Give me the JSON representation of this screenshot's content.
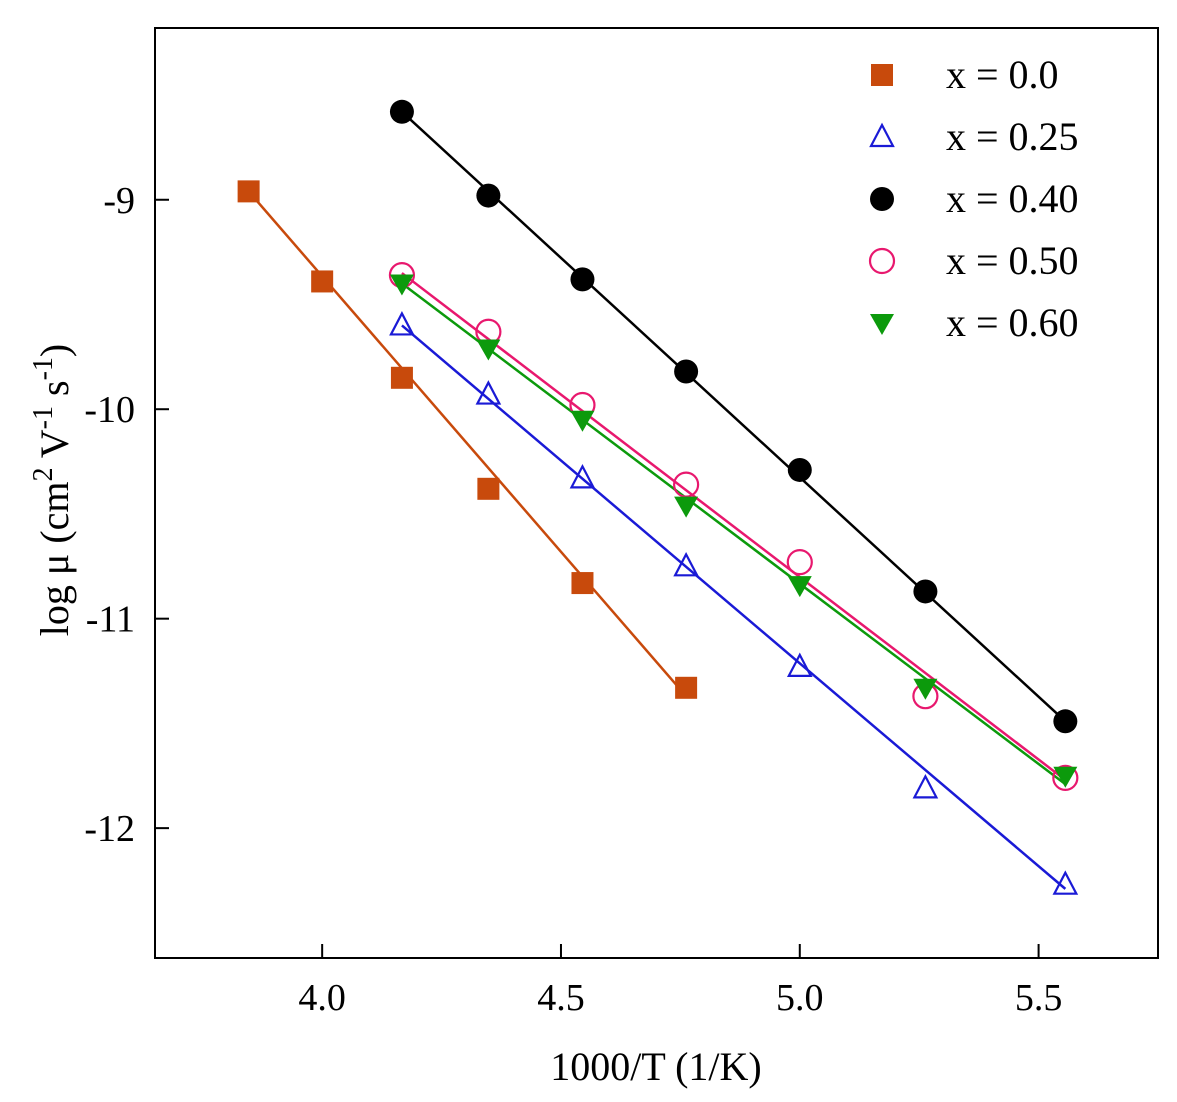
{
  "chart_data": {
    "type": "scatter",
    "title": "",
    "xlabel": "1000/T  (1/K)",
    "ylabel_parts": {
      "prefix": "log μ (cm",
      "sup1": "2",
      "mid1": " V",
      "sup2": "-1",
      "mid2": " s",
      "sup3": "-1",
      "suffix": ")"
    },
    "xlim": [
      3.65,
      5.75
    ],
    "ylim": [
      -12.62,
      -8.18
    ],
    "xticks": [
      4.0,
      4.5,
      5.0,
      5.5
    ],
    "xtick_labels": [
      "4.0",
      "4.5",
      "5.0",
      "5.5"
    ],
    "yticks": [
      -9,
      -10,
      -11,
      -12
    ],
    "ytick_labels": [
      "-9",
      "-10",
      "-11",
      "-12"
    ],
    "grid": false,
    "legend_position": "top-right",
    "series": [
      {
        "name": "x = 0.0",
        "marker": "square-filled",
        "color": "#c84a0c",
        "x": [
          3.846,
          4.0,
          4.167,
          4.348,
          4.545,
          4.762
        ],
        "y": [
          -8.96,
          -9.39,
          -9.85,
          -10.38,
          -10.83,
          -11.33
        ],
        "fit": [
          [
            3.846,
            -8.96
          ],
          [
            4.762,
            -11.37
          ]
        ]
      },
      {
        "name": "x = 0.25",
        "marker": "triangle-open",
        "color": "#1a1ad6",
        "x": [
          4.167,
          4.348,
          4.545,
          4.762,
          5.0,
          5.263,
          5.556
        ],
        "y": [
          -9.6,
          -9.93,
          -10.33,
          -10.75,
          -11.23,
          -11.81,
          -12.27
        ],
        "fit": [
          [
            4.167,
            -9.6
          ],
          [
            5.556,
            -12.29
          ]
        ]
      },
      {
        "name": "x = 0.40",
        "marker": "circle-filled",
        "color": "#000000",
        "x": [
          4.167,
          4.348,
          4.545,
          4.762,
          5.0,
          5.263,
          5.556
        ],
        "y": [
          -8.58,
          -8.98,
          -9.38,
          -9.82,
          -10.29,
          -10.87,
          -11.49
        ],
        "fit": [
          [
            4.167,
            -8.58
          ],
          [
            5.556,
            -11.49
          ]
        ]
      },
      {
        "name": "x = 0.50",
        "marker": "circle-open",
        "color": "#e8186e",
        "x": [
          4.167,
          4.348,
          4.545,
          4.762,
          5.0,
          5.263,
          5.556
        ],
        "y": [
          -9.36,
          -9.63,
          -9.98,
          -10.36,
          -10.73,
          -11.37,
          -11.76
        ],
        "fit": [
          [
            4.167,
            -9.35
          ],
          [
            5.556,
            -11.77
          ]
        ]
      },
      {
        "name": "x = 0.60",
        "marker": "triangle-down-filled",
        "color": "#0c9a0c",
        "x": [
          4.167,
          4.348,
          4.545,
          4.762,
          5.0,
          5.263,
          5.556
        ],
        "y": [
          -9.4,
          -9.71,
          -10.05,
          -10.46,
          -10.84,
          -11.33,
          -11.75
        ],
        "fit": [
          [
            4.167,
            -9.4
          ],
          [
            5.556,
            -11.79
          ]
        ]
      }
    ]
  }
}
